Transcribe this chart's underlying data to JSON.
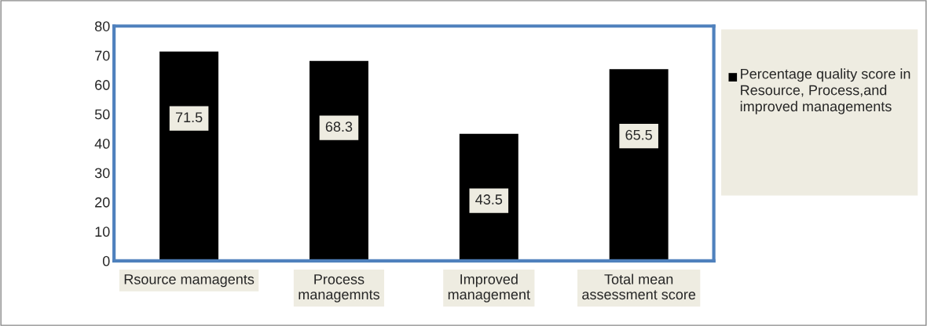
{
  "chart_data": {
    "type": "bar",
    "categories": [
      "Rsource mamagents",
      "Process managemnts",
      "Improved management",
      "Total mean assessment score"
    ],
    "series": [
      {
        "name": "Percentage quality score in Resource, Process,and improved managements",
        "color": "#000000",
        "values": [
          71.5,
          68.3,
          43.5,
          65.5
        ]
      }
    ],
    "ylim": [
      0,
      80
    ],
    "yticks": [
      0,
      10,
      20,
      30,
      40,
      50,
      60,
      70,
      80
    ],
    "data_labels": true,
    "grid": false,
    "legend": "right"
  }
}
